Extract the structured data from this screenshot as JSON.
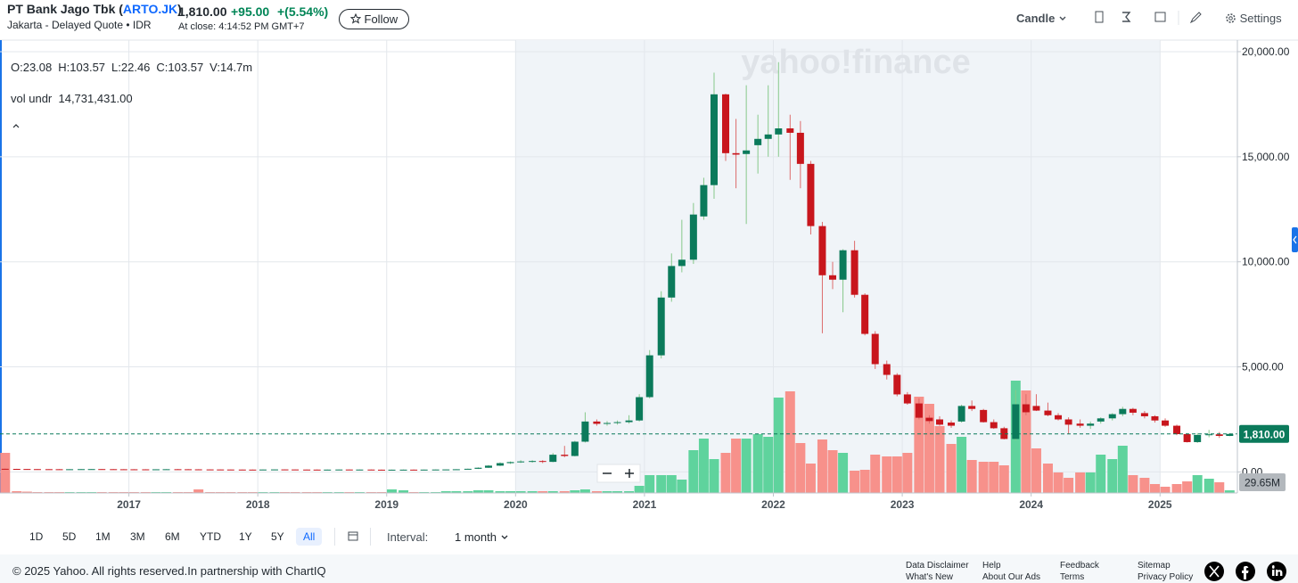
{
  "header": {
    "title_prefix": "PT Bank Jago Tbk (",
    "ticker": "ARTO.JK",
    "title_suffix": ")",
    "subtitle": "Jakarta - Delayed Quote • IDR",
    "price": "1,810.00",
    "change": "+95.00",
    "change_pct": "+(5.54%)",
    "close_time": "At close: 4:14:52 PM GMT+7",
    "follow": "Follow"
  },
  "toolbar": {
    "chart_type": "Candle",
    "settings": "Settings"
  },
  "legend": {
    "items": [
      "O:23.08",
      "H:103.57",
      "L:22.46",
      "C:103.57",
      "V:14.7m"
    ],
    "study_name": "vol undr",
    "study_value": "14,731,431.00"
  },
  "watermark": "yahoo!finance",
  "chart_data": {
    "type": "candlestick",
    "x": [
      2016.04,
      2016.13,
      2016.21,
      2016.29,
      2016.38,
      2016.46,
      2016.54,
      2016.63,
      2016.71,
      2016.79,
      2016.88,
      2016.96,
      2017.04,
      2017.13,
      2017.21,
      2017.29,
      2017.38,
      2017.46,
      2017.54,
      2017.63,
      2017.71,
      2017.79,
      2017.88,
      2017.96,
      2018.04,
      2018.13,
      2018.21,
      2018.29,
      2018.38,
      2018.46,
      2018.54,
      2018.63,
      2018.71,
      2018.79,
      2018.88,
      2018.96,
      2019.04,
      2019.13,
      2019.21,
      2019.29,
      2019.38,
      2019.46,
      2019.54,
      2019.63,
      2019.71,
      2019.79,
      2019.88,
      2019.96,
      2020.04,
      2020.13,
      2020.21,
      2020.29,
      2020.38,
      2020.46,
      2020.54,
      2020.63,
      2020.71,
      2020.79,
      2020.88,
      2020.96,
      2021.04,
      2021.13,
      2021.21,
      2021.29,
      2021.38,
      2021.46,
      2021.54,
      2021.63,
      2021.71,
      2021.79,
      2021.88,
      2021.96,
      2022.04,
      2022.13,
      2022.21,
      2022.29,
      2022.38,
      2022.46,
      2022.54,
      2022.63,
      2022.71,
      2022.79,
      2022.88,
      2022.96,
      2023.04,
      2023.13,
      2023.21,
      2023.29,
      2023.38,
      2023.46,
      2023.54,
      2023.63,
      2023.71,
      2023.79,
      2023.88,
      2023.96,
      2024.04,
      2024.13,
      2024.21,
      2024.29,
      2024.38,
      2024.46,
      2024.54,
      2024.63,
      2024.71,
      2024.79,
      2024.88,
      2024.96,
      2025.04,
      2025.13,
      2025.21,
      2025.29,
      2025.38,
      2025.46,
      2025.54
    ],
    "ohlc": [
      [
        150,
        160,
        140,
        145
      ],
      [
        145,
        150,
        135,
        140
      ],
      [
        140,
        145,
        130,
        135
      ],
      [
        135,
        140,
        130,
        132
      ],
      [
        132,
        138,
        128,
        130
      ],
      [
        130,
        136,
        126,
        128
      ],
      [
        128,
        134,
        124,
        130
      ],
      [
        130,
        138,
        126,
        134
      ],
      [
        134,
        140,
        130,
        136
      ],
      [
        136,
        142,
        130,
        132
      ],
      [
        132,
        138,
        126,
        128
      ],
      [
        128,
        134,
        122,
        126
      ],
      [
        126,
        132,
        120,
        124
      ],
      [
        124,
        130,
        118,
        122
      ],
      [
        122,
        128,
        118,
        126
      ],
      [
        126,
        134,
        122,
        130
      ],
      [
        130,
        136,
        124,
        128
      ],
      [
        128,
        134,
        122,
        124
      ],
      [
        124,
        130,
        118,
        120
      ],
      [
        120,
        126,
        114,
        118
      ],
      [
        118,
        124,
        112,
        116
      ],
      [
        116,
        122,
        110,
        114
      ],
      [
        114,
        120,
        108,
        112
      ],
      [
        112,
        118,
        106,
        110
      ],
      [
        110,
        118,
        104,
        116
      ],
      [
        116,
        124,
        110,
        120
      ],
      [
        120,
        126,
        114,
        118
      ],
      [
        118,
        124,
        110,
        114
      ],
      [
        114,
        120,
        108,
        112
      ],
      [
        112,
        118,
        104,
        108
      ],
      [
        108,
        116,
        102,
        112
      ],
      [
        112,
        120,
        106,
        116
      ],
      [
        116,
        122,
        108,
        110
      ],
      [
        110,
        118,
        104,
        114
      ],
      [
        114,
        120,
        106,
        108
      ],
      [
        108,
        114,
        100,
        104
      ],
      [
        104,
        112,
        98,
        108
      ],
      [
        108,
        116,
        100,
        110
      ],
      [
        110,
        118,
        102,
        106
      ],
      [
        106,
        114,
        100,
        112
      ],
      [
        112,
        120,
        104,
        116
      ],
      [
        116,
        124,
        108,
        120
      ],
      [
        120,
        132,
        112,
        128
      ],
      [
        128,
        160,
        120,
        150
      ],
      [
        150,
        220,
        140,
        200
      ],
      [
        200,
        330,
        190,
        300
      ],
      [
        300,
        460,
        280,
        420
      ],
      [
        420,
        500,
        380,
        470
      ],
      [
        470,
        560,
        430,
        500
      ],
      [
        500,
        560,
        440,
        520
      ],
      [
        520,
        560,
        420,
        480
      ],
      [
        480,
        900,
        460,
        820
      ],
      [
        820,
        1240,
        700,
        760
      ],
      [
        760,
        1480,
        740,
        1440
      ],
      [
        1440,
        2840,
        1400,
        2400
      ],
      [
        2400,
        2500,
        2200,
        2290
      ],
      [
        2290,
        2420,
        2200,
        2330
      ],
      [
        2330,
        2450,
        2250,
        2370
      ],
      [
        2370,
        2700,
        2300,
        2450
      ],
      [
        2450,
        3700,
        2400,
        3560
      ],
      [
        3560,
        5800,
        3500,
        5550
      ],
      [
        5550,
        8600,
        5400,
        8300
      ],
      [
        8300,
        10400,
        8100,
        9800
      ],
      [
        9800,
        12000,
        9500,
        10100
      ],
      [
        10100,
        12800,
        9900,
        12250
      ],
      [
        12160,
        14000,
        12000,
        13650
      ],
      [
        13650,
        19000,
        13000,
        17970
      ],
      [
        17970,
        18000,
        14800,
        15170
      ],
      [
        15170,
        16800,
        13500,
        15100
      ],
      [
        15130,
        18400,
        11800,
        15300
      ],
      [
        15550,
        17000,
        14200,
        15850
      ],
      [
        15850,
        18400,
        15000,
        16060
      ],
      [
        16060,
        19500,
        15000,
        16350
      ],
      [
        16350,
        17000,
        13900,
        16140
      ],
      [
        16140,
        16700,
        13500,
        14660
      ],
      [
        14660,
        14800,
        11300,
        11700
      ],
      [
        11700,
        11900,
        6600,
        9360
      ],
      [
        9360,
        10000,
        8700,
        9150
      ],
      [
        9150,
        10600,
        7600,
        10550
      ],
      [
        10550,
        11000,
        8300,
        8430
      ],
      [
        8430,
        8500,
        6500,
        6570
      ],
      [
        6570,
        6700,
        4900,
        5130
      ],
      [
        5130,
        5300,
        4400,
        4620
      ],
      [
        4620,
        4700,
        3600,
        3690
      ],
      [
        3690,
        3800,
        3200,
        3260
      ],
      [
        3260,
        3500,
        2500,
        2580
      ],
      [
        2580,
        2700,
        2300,
        2420
      ],
      [
        2500,
        2650,
        2200,
        2250
      ],
      [
        2350,
        2450,
        2100,
        2200
      ],
      [
        2400,
        3200,
        2350,
        3140
      ],
      [
        3140,
        3400,
        2900,
        3000
      ],
      [
        2950,
        3000,
        2350,
        2370
      ],
      [
        2370,
        2500,
        2050,
        2080
      ],
      [
        2080,
        2150,
        1550,
        1570
      ],
      [
        1570,
        3900,
        1500,
        3220
      ],
      [
        3220,
        3700,
        2700,
        2840
      ],
      [
        3140,
        3700,
        2900,
        2920
      ],
      [
        2920,
        3300,
        2650,
        2700
      ],
      [
        2700,
        2800,
        2450,
        2500
      ],
      [
        2500,
        2600,
        1800,
        2250
      ],
      [
        2300,
        2500,
        2100,
        2200
      ],
      [
        2200,
        2400,
        2050,
        2300
      ],
      [
        2400,
        2600,
        2300,
        2550
      ],
      [
        2550,
        2800,
        2450,
        2750
      ],
      [
        2750,
        3100,
        2650,
        3000
      ],
      [
        3000,
        3050,
        2700,
        2820
      ],
      [
        2800,
        2900,
        2550,
        2650
      ],
      [
        2650,
        2700,
        2350,
        2450
      ],
      [
        2450,
        2550,
        2150,
        2200
      ],
      [
        2200,
        2250,
        1750,
        1800
      ],
      [
        1800,
        1850,
        1400,
        1420
      ],
      [
        1420,
        1850,
        1380,
        1760
      ],
      [
        1760,
        2000,
        1650,
        1790
      ],
      [
        1790,
        1900,
        1620,
        1715
      ],
      [
        1715,
        1850,
        1700,
        1810
      ]
    ],
    "volume": [
      450,
      20,
      15,
      10,
      10,
      10,
      10,
      10,
      10,
      10,
      10,
      10,
      10,
      10,
      10,
      10,
      10,
      10,
      40,
      10,
      10,
      10,
      10,
      10,
      10,
      10,
      10,
      10,
      10,
      10,
      10,
      10,
      10,
      10,
      10,
      10,
      40,
      30,
      10,
      10,
      10,
      20,
      20,
      20,
      30,
      30,
      20,
      20,
      20,
      20,
      20,
      20,
      20,
      30,
      40,
      20,
      20,
      20,
      20,
      80,
      200,
      200,
      200,
      150,
      480,
      610,
      380,
      450,
      610,
      610,
      660,
      630,
      1070,
      1140,
      560,
      330,
      600,
      480,
      450,
      250,
      260,
      430,
      410,
      410,
      450,
      1080,
      1000,
      750,
      550,
      630,
      370,
      350,
      350,
      310,
      1260,
      1150,
      500,
      330,
      230,
      170,
      230,
      230,
      430,
      380,
      530,
      200,
      170,
      100,
      70,
      100,
      130,
      200,
      160,
      120,
      29.65
    ],
    "vlim": [
      0,
      1300
    ],
    "volume_label": {
      "value": 29.65,
      "label": "29.65M"
    },
    "last_price": {
      "value": 1810,
      "label": "1,810.00"
    },
    "xlim": [
      2016.0,
      2025.6
    ],
    "xticks": [
      2017,
      2018,
      2019,
      2020,
      2021,
      2022,
      2023,
      2024,
      2025
    ],
    "ylim": [
      -1000,
      20550
    ],
    "yticks": [
      {
        "value": 0,
        "label": "0.00"
      },
      {
        "value": 5000,
        "label": "5,000.00"
      },
      {
        "value": 10000,
        "label": "10,000.00"
      },
      {
        "value": 15000,
        "label": "15,000.00"
      },
      {
        "value": 20000,
        "label": "20,000.00"
      }
    ],
    "highlight_range": [
      2020,
      2025
    ],
    "grid": true,
    "up_color": "#0b7a5b",
    "down_color": "#c8161d",
    "up_wick": "#86c98a",
    "down_wick": "#dd6b6b",
    "up_volume_color": "#5fd39d",
    "down_volume_color": "#f7918b"
  },
  "ranges": {
    "buttons": [
      "1D",
      "5D",
      "1M",
      "3M",
      "6M",
      "YTD",
      "1Y",
      "5Y",
      "All"
    ],
    "interval_label": "Interval:",
    "interval": "1 month"
  },
  "footer": {
    "copyright": "© 2025 Yahoo. All rights reserved.In partnership with ChartIQ",
    "links": [
      [
        "Data Disclaimer",
        "What's New"
      ],
      [
        "Help",
        "About Our Ads"
      ],
      [
        "Feedback",
        "Terms"
      ],
      [
        "Sitemap",
        "Privacy Policy"
      ]
    ]
  }
}
